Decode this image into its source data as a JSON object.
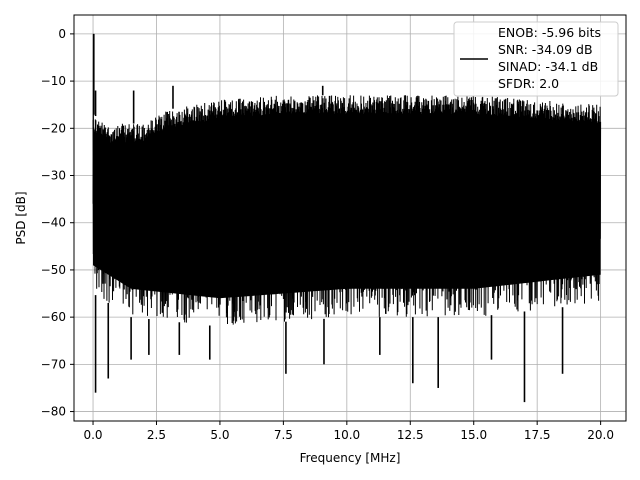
{
  "chart_data": {
    "type": "line",
    "title": "",
    "xlabel": "Frequency [MHz]",
    "ylabel": "PSD [dB]",
    "xlim": [
      -0.75,
      21.0
    ],
    "ylim": [
      -82,
      4
    ],
    "grid": true,
    "x_ticks": [
      0.0,
      2.5,
      5.0,
      7.5,
      10.0,
      12.5,
      15.0,
      17.5,
      20.0
    ],
    "x_tick_labels": [
      "0.0",
      "2.5",
      "5.0",
      "7.5",
      "10.0",
      "12.5",
      "15.0",
      "17.5",
      "20.0"
    ],
    "y_ticks": [
      0,
      -10,
      -20,
      -30,
      -40,
      -50,
      -60,
      -70,
      -80
    ],
    "y_tick_labels": [
      "0",
      "−10",
      "−20",
      "−30",
      "−40",
      "−50",
      "−60",
      "−70",
      "−80"
    ],
    "legend": {
      "position": "top-right",
      "lines": [
        "ENOB: -5.96 bits",
        "SNR: -34.09 dB",
        "SINAD: -34.1 dB",
        "SFDR: 2.0"
      ]
    },
    "series": [
      {
        "color": "#000000",
        "x_range": [
          0.0,
          20.0
        ],
        "peak_at_zero": 0.0,
        "upper_envelope": [
          [
            0.0,
            -17
          ],
          [
            0.5,
            -19
          ],
          [
            1.0,
            -19
          ],
          [
            2.0,
            -19
          ],
          [
            3.0,
            -16
          ],
          [
            4.0,
            -15
          ],
          [
            5.0,
            -14
          ],
          [
            7.5,
            -13
          ],
          [
            10.0,
            -13
          ],
          [
            12.5,
            -13
          ],
          [
            15.0,
            -13
          ],
          [
            17.5,
            -14
          ],
          [
            20.0,
            -15
          ]
        ],
        "lower_envelope": [
          [
            0.0,
            -55
          ],
          [
            1.5,
            -60
          ],
          [
            5.0,
            -62
          ],
          [
            10.0,
            -60
          ],
          [
            15.0,
            -60
          ],
          [
            20.0,
            -57
          ]
        ],
        "deep_spikes": [
          [
            0.1,
            -76
          ],
          [
            0.6,
            -73
          ],
          [
            1.5,
            -69
          ],
          [
            2.2,
            -68
          ],
          [
            3.4,
            -68
          ],
          [
            4.6,
            -69
          ],
          [
            7.6,
            -72
          ],
          [
            9.1,
            -70
          ],
          [
            11.3,
            -68
          ],
          [
            12.6,
            -74
          ],
          [
            13.6,
            -75
          ],
          [
            15.7,
            -69
          ],
          [
            17.0,
            -78
          ],
          [
            18.5,
            -72
          ]
        ],
        "high_spikes": [
          [
            0.03,
            0
          ],
          [
            0.1,
            -12
          ],
          [
            1.6,
            -12
          ],
          [
            3.15,
            -11
          ],
          [
            9.05,
            -11
          ]
        ]
      }
    ]
  }
}
